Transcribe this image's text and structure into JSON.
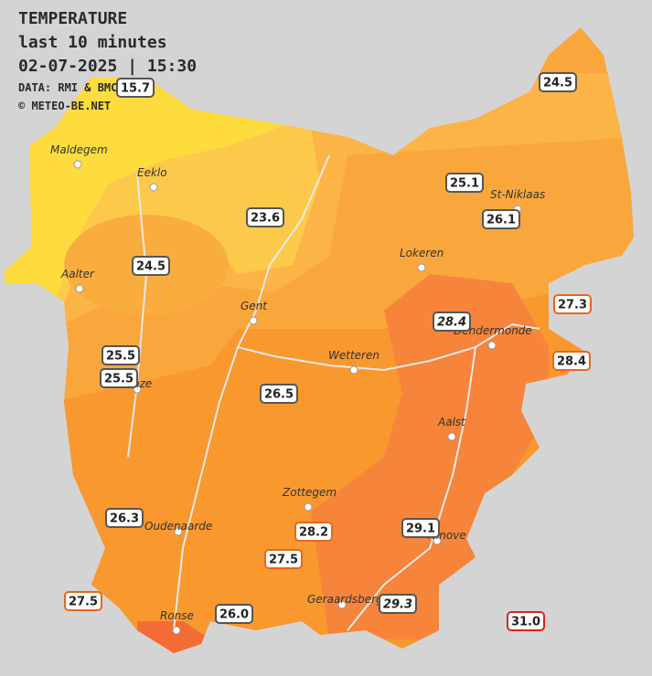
{
  "header": {
    "title": "TEMPERATURE",
    "subtitle": "last 10 minutes",
    "datetime": "02-07-2025  |  15:30",
    "source": "DATA: RMI & BMCB",
    "copyright": "© METEO-BE.NET"
  },
  "cities": [
    "Maldegem",
    "Eeklo",
    "Aalter",
    "Gent",
    "Lokeren",
    "St-Niklaas",
    "Dendermonde",
    "Wetteren",
    "Aalst",
    "Zottegem",
    "Oudenaarde",
    "Ronse",
    "Geraardsbergen",
    "Ninove",
    "Deinze"
  ],
  "stations": [
    "15.7",
    "24.5",
    "25.1",
    "26.1",
    "23.6",
    "24.5",
    "27.3",
    "28.4",
    "28.4",
    "25.5",
    "25.5",
    "26.5",
    "26.3",
    "28.2",
    "29.1",
    "27.5",
    "27.5",
    "26.0",
    "29.3",
    "31.0"
  ]
}
